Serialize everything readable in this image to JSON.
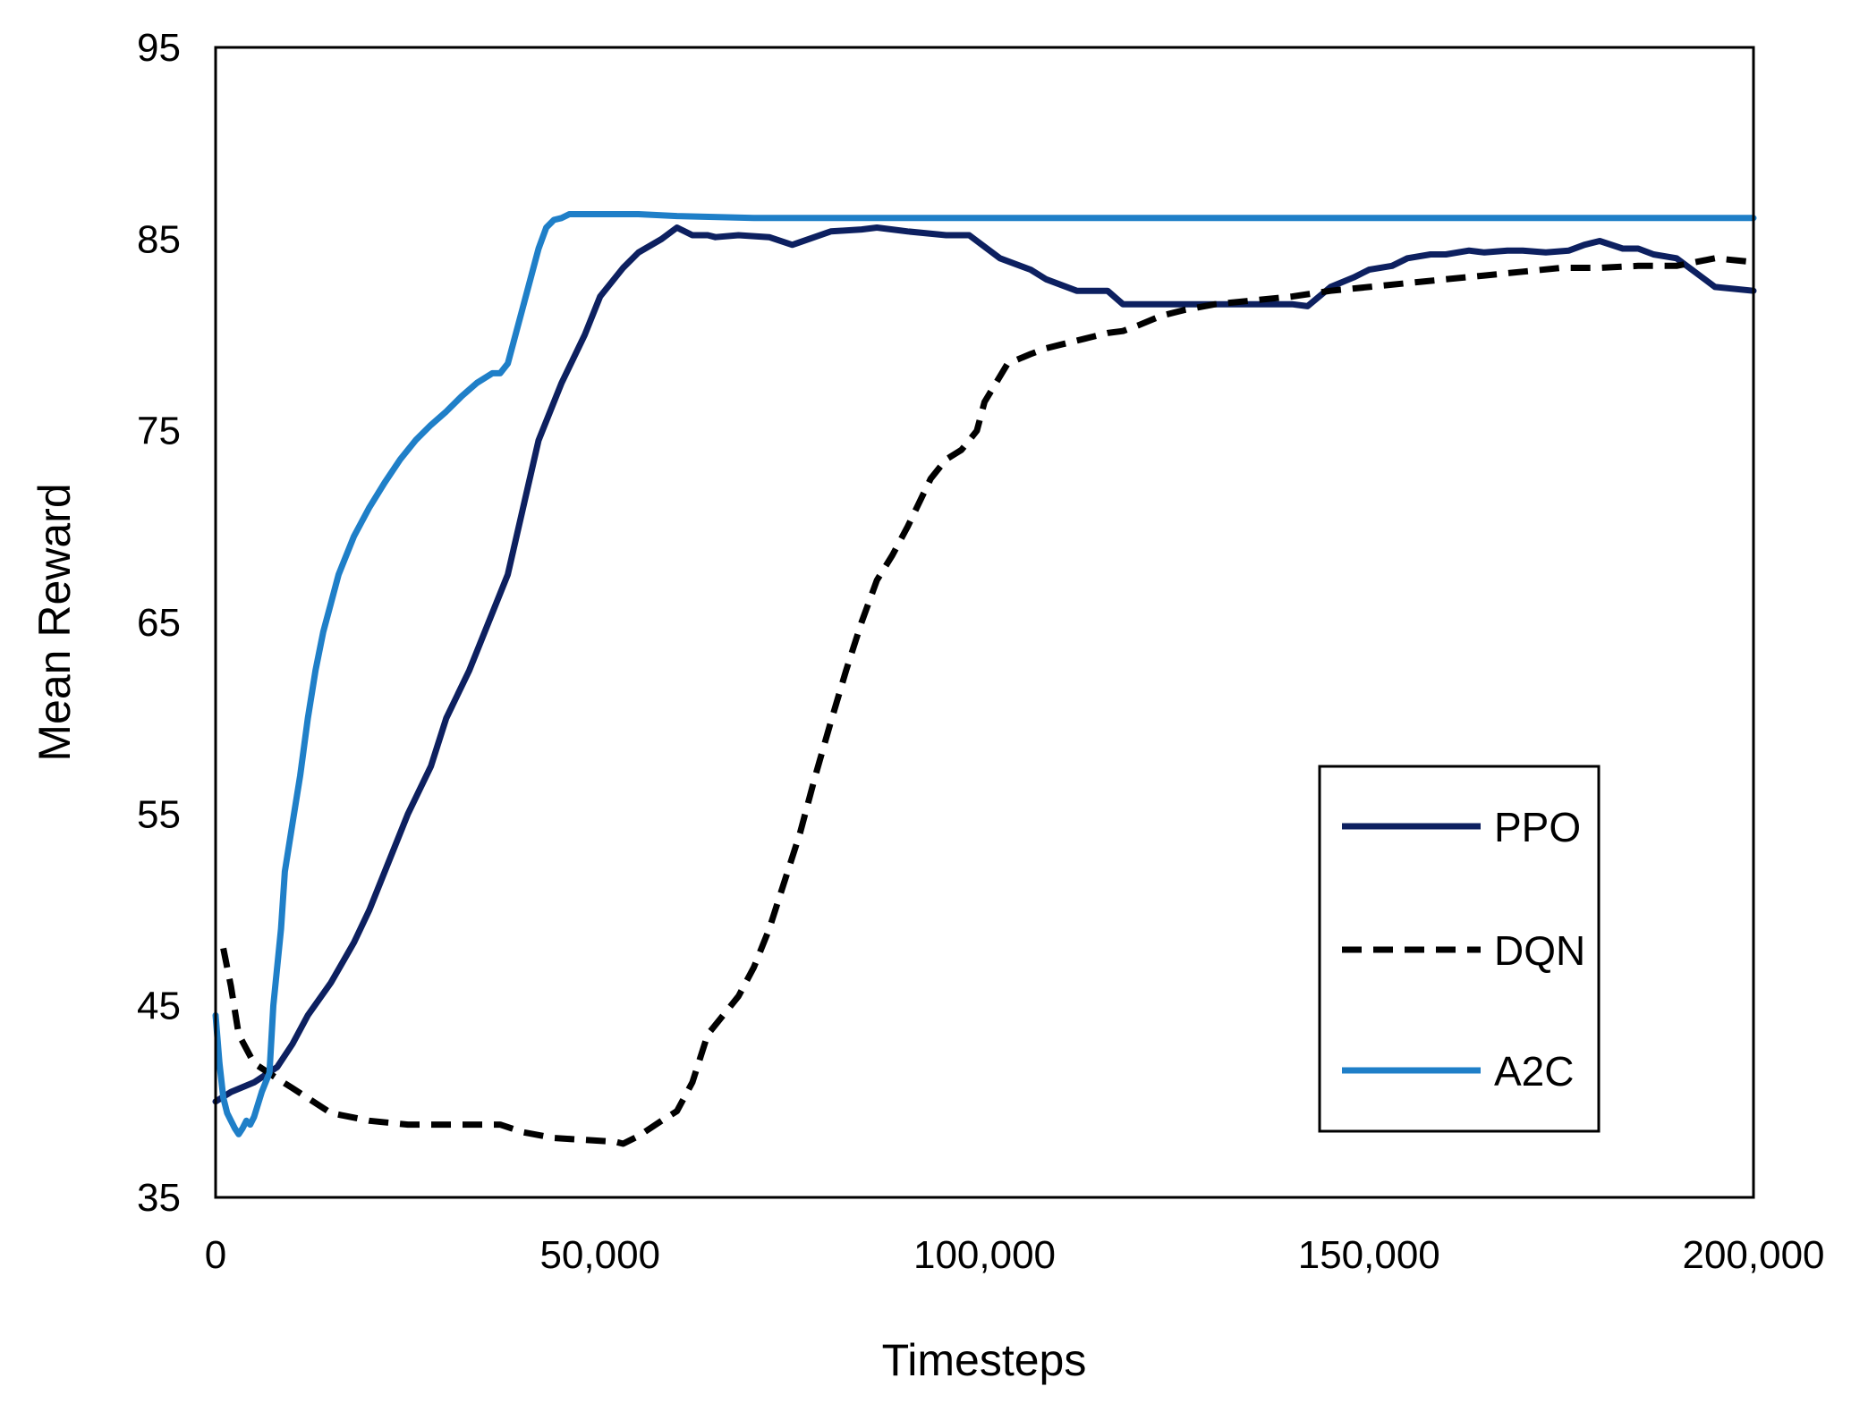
{
  "chart_data": {
    "type": "line",
    "title": "",
    "xlabel": "Timesteps",
    "ylabel": "Mean Reward",
    "xlim": [
      0,
      200000
    ],
    "ylim": [
      35,
      95
    ],
    "x_ticks": [
      {
        "value": 0,
        "label": "0"
      },
      {
        "value": 50000,
        "label": "50,000"
      },
      {
        "value": 100000,
        "label": "100,000"
      },
      {
        "value": 150000,
        "label": "150,000"
      },
      {
        "value": 200000,
        "label": "200,000"
      }
    ],
    "y_ticks": [
      {
        "value": 35,
        "label": "35"
      },
      {
        "value": 45,
        "label": "45"
      },
      {
        "value": 55,
        "label": "55"
      },
      {
        "value": 65,
        "label": "65"
      },
      {
        "value": 75,
        "label": "75"
      },
      {
        "value": 85,
        "label": "85"
      },
      {
        "value": 95,
        "label": "95"
      }
    ],
    "grid": false,
    "legend_position": "bottom-right",
    "series": [
      {
        "name": "PPO",
        "color": "#0d2060",
        "style": "solid",
        "x": [
          0,
          2000,
          5000,
          8000,
          10000,
          12000,
          15000,
          18000,
          20000,
          23000,
          25000,
          28000,
          30000,
          33000,
          35000,
          38000,
          40000,
          42000,
          45000,
          48000,
          50000,
          53000,
          55000,
          58000,
          60000,
          62000,
          64000,
          65000,
          68000,
          72000,
          75000,
          80000,
          84000,
          86000,
          90000,
          95000,
          98000,
          102000,
          106000,
          108000,
          112000,
          116000,
          118000,
          122000,
          125000,
          128000,
          132000,
          136000,
          140000,
          142000,
          145000,
          148000,
          150000,
          153000,
          155000,
          158000,
          160000,
          163000,
          165000,
          168000,
          170000,
          173000,
          176000,
          178000,
          180000,
          183000,
          185000,
          187000,
          190000,
          195000,
          200000
        ],
        "y": [
          40,
          40.5,
          41,
          41.8,
          43,
          44.5,
          46.2,
          48.3,
          50,
          53,
          55,
          57.5,
          60,
          62.5,
          64.5,
          67.5,
          71,
          74.5,
          77.5,
          80,
          82,
          83.5,
          84.3,
          85,
          85.6,
          85.2,
          85.2,
          85.1,
          85.2,
          85.1,
          84.7,
          85.4,
          85.5,
          85.6,
          85.4,
          85.2,
          85.2,
          84,
          83.4,
          82.9,
          82.3,
          82.3,
          81.6,
          81.6,
          81.6,
          81.6,
          81.6,
          81.6,
          81.6,
          81.5,
          82.5,
          83,
          83.4,
          83.6,
          84,
          84.2,
          84.2,
          84.4,
          84.3,
          84.4,
          84.4,
          84.3,
          84.4,
          84.7,
          84.9,
          84.5,
          84.5,
          84.2,
          84,
          82.5,
          82.3
        ]
      },
      {
        "name": "DQN",
        "color": "#000000",
        "style": "dashed",
        "x": [
          1000,
          2000,
          3000,
          5000,
          8000,
          10000,
          15000,
          20000,
          25000,
          30000,
          35000,
          37000,
          40000,
          44000,
          48000,
          52000,
          53000,
          55000,
          58000,
          60000,
          62000,
          64000,
          66000,
          68000,
          70000,
          72000,
          74000,
          76000,
          78000,
          80000,
          82000,
          84000,
          86000,
          88000,
          90000,
          93000,
          95000,
          97000,
          99000,
          100000,
          103000,
          106000,
          108000,
          110000,
          113000,
          116000,
          118000,
          120000,
          123000,
          126000,
          130000,
          135000,
          140000,
          145000,
          150000,
          155000,
          160000,
          165000,
          170000,
          175000,
          180000,
          185000,
          190000,
          195000,
          200000
        ],
        "y": [
          48,
          46,
          43.5,
          42,
          41.2,
          40.7,
          39.4,
          39,
          38.8,
          38.8,
          38.8,
          38.8,
          38.4,
          38.1,
          38,
          37.9,
          37.8,
          38.2,
          39,
          39.5,
          41,
          43.5,
          44.5,
          45.5,
          47,
          49,
          51.5,
          54,
          57,
          59.8,
          62.5,
          65,
          67.2,
          68.5,
          70,
          72.5,
          73.5,
          74,
          75,
          76.5,
          78.5,
          79,
          79.3,
          79.5,
          79.8,
          80.1,
          80.2,
          80.5,
          81,
          81.3,
          81.6,
          81.8,
          82,
          82.3,
          82.5,
          82.7,
          82.9,
          83.1,
          83.3,
          83.5,
          83.5,
          83.6,
          83.6,
          84,
          83.8
        ]
      },
      {
        "name": "A2C",
        "color": "#1f7fc8",
        "style": "solid",
        "x": [
          0,
          500,
          1000,
          1500,
          2000,
          2500,
          3000,
          3500,
          4000,
          4500,
          5000,
          6000,
          7000,
          7500,
          8000,
          8500,
          9000,
          10000,
          11000,
          12000,
          13000,
          14000,
          15000,
          16000,
          18000,
          20000,
          22000,
          24000,
          26000,
          28000,
          30000,
          32000,
          34000,
          36000,
          37000,
          38000,
          39000,
          40000,
          41000,
          42000,
          43000,
          44000,
          45000,
          46000,
          47000,
          48000,
          50000,
          55000,
          60000,
          70000,
          80000,
          100000,
          150000,
          200000
        ],
        "y": [
          44.5,
          42,
          40.2,
          39.4,
          39,
          38.6,
          38.3,
          38.6,
          39,
          38.8,
          39.2,
          40.5,
          41.5,
          45,
          47,
          49,
          52,
          54.5,
          57,
          60,
          62.5,
          64.5,
          66,
          67.5,
          69.5,
          71,
          72.3,
          73.5,
          74.5,
          75.3,
          76,
          76.8,
          77.5,
          78,
          78,
          78.5,
          80,
          81.5,
          83,
          84.5,
          85.6,
          86,
          86.1,
          86.3,
          86.3,
          86.3,
          86.3,
          86.3,
          86.2,
          86.1,
          86.1,
          86.1,
          86.1,
          86.1
        ]
      }
    ]
  }
}
